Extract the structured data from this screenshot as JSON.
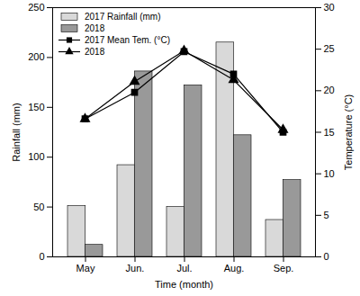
{
  "chart_data": {
    "type": "bar",
    "x_label": "Time (month)",
    "y_label": "Rainfall (mm)",
    "y2_label": "Temperature (°C)",
    "categories": [
      "May",
      "Jun.",
      "Jul.",
      "Aug.",
      "Sep."
    ],
    "series": [
      {
        "name": "2017 Rainfall (mm)",
        "type": "bar",
        "color": "#d9d9d9",
        "values": [
          51,
          92,
          50,
          215,
          37
        ]
      },
      {
        "name": "2018",
        "type": "bar",
        "color": "#999999",
        "values": [
          12,
          186,
          172,
          122,
          77
        ]
      },
      {
        "name": "2017 Mean Tem. (°C)",
        "type": "line",
        "axis": "y2",
        "color": "#000000",
        "marker": "square",
        "values": [
          16.6,
          19.8,
          24.7,
          22.0,
          15.0
        ]
      },
      {
        "name": "2018",
        "type": "line",
        "axis": "y2",
        "color": "#000000",
        "marker": "triangle",
        "values": [
          16.6,
          21.1,
          24.8,
          21.3,
          15.3
        ]
      }
    ],
    "ylim": [
      0,
      250
    ],
    "yticks": [
      0,
      50,
      100,
      150,
      200,
      250
    ],
    "y2lim": [
      0,
      30
    ],
    "y2ticks": [
      0,
      5,
      10,
      15,
      20,
      25,
      30
    ],
    "legend": "top-left"
  }
}
